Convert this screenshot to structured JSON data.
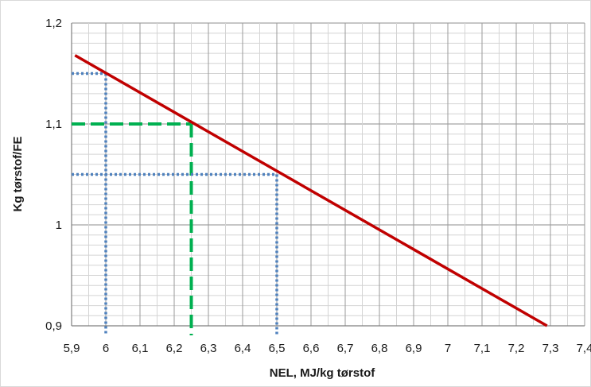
{
  "chart_data": {
    "type": "line",
    "title": "",
    "xlabel": "NEL, MJ/kg tørstof",
    "ylabel": "Kg tørstof/FE",
    "xlim": [
      5.9,
      7.4
    ],
    "ylim": [
      0.9,
      1.2
    ],
    "x_ticks": [
      "5,9",
      "6",
      "6,1",
      "6,2",
      "6,3",
      "6,4",
      "6,5",
      "6,6",
      "6,7",
      "6,8",
      "6,9",
      "7",
      "7,1",
      "7,2",
      "7,3",
      "7,4"
    ],
    "y_ticks": [
      "0,9",
      "1",
      "1,1",
      "1,2"
    ],
    "grid": true,
    "legend": "none",
    "series": [
      {
        "values_x": [
          5.91,
          7.29
        ],
        "values_y": [
          1.168,
          0.9
        ],
        "color": "#c00000",
        "style": "solid"
      }
    ],
    "guides": [
      {
        "x": 6.0,
        "y": 1.15,
        "color": "#4f81bd",
        "style": "dotted"
      },
      {
        "x": 6.25,
        "y": 1.1,
        "color": "#00b050",
        "style": "dashed"
      },
      {
        "x": 6.5,
        "y": 1.05,
        "color": "#4f81bd",
        "style": "dotted"
      }
    ]
  }
}
